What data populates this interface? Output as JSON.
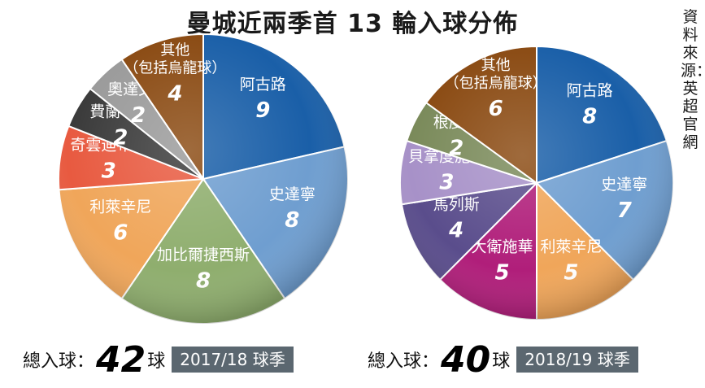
{
  "title": "曼城近兩季首 13 輪入球分佈",
  "source": "資料來源：英超官網",
  "chart_data": [
    {
      "type": "pie",
      "season": "2017/18 球季",
      "total_prefix": "總入球：",
      "total": "42",
      "total_suffix": "球",
      "slices": [
        {
          "label": "阿古路",
          "value": 9,
          "color": "#1a5fa8"
        },
        {
          "label": "史達寧",
          "value": 8,
          "color": "#6f9ed0"
        },
        {
          "label": "加比爾捷西斯",
          "value": 8,
          "color": "#8fae6e"
        },
        {
          "label": "利萊辛尼",
          "value": 6,
          "color": "#f0a65a"
        },
        {
          "label": "奇雲迪布尼",
          "value": 3,
          "color": "#e85a40"
        },
        {
          "label": "費蘭甸奴",
          "value": 2,
          "color": "#3a3a3a"
        },
        {
          "label": "奧達文迪",
          "value": 2,
          "color": "#9a9a9a"
        },
        {
          "label": "其他\n（包括烏龍球）",
          "value": 4,
          "color": "#8a4a12"
        }
      ]
    },
    {
      "type": "pie",
      "season": "2018/19 球季",
      "total_prefix": "總入球：",
      "total": "40",
      "total_suffix": "球",
      "slices": [
        {
          "label": "阿古路",
          "value": 8,
          "color": "#1a5fa8"
        },
        {
          "label": "史達寧",
          "value": 7,
          "color": "#6f9ed0"
        },
        {
          "label": "利萊辛尼",
          "value": 5,
          "color": "#f0a65a"
        },
        {
          "label": "大衛施華",
          "value": 5,
          "color": "#b01e7a"
        },
        {
          "label": "馬列斯",
          "value": 4,
          "color": "#5a4d8c"
        },
        {
          "label": "貝拿度施華",
          "value": 3,
          "color": "#a791c8"
        },
        {
          "label": "根度簡",
          "value": 2,
          "color": "#7a8a5a"
        },
        {
          "label": "其他\n（包括烏龍球）",
          "value": 6,
          "color": "#8a4a12"
        }
      ]
    }
  ]
}
